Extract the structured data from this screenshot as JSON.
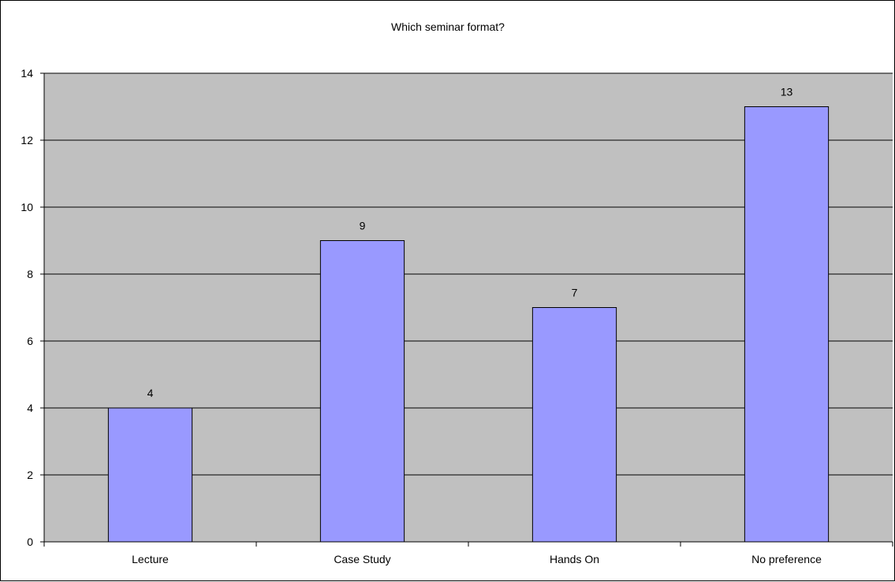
{
  "chart_data": {
    "type": "bar",
    "title": "Which seminar format?",
    "categories": [
      "Lecture",
      "Case Study",
      "Hands On",
      "No preference"
    ],
    "series": [
      {
        "values": [
          4,
          9,
          7,
          13
        ]
      }
    ],
    "ylim": [
      0,
      14
    ],
    "yticks": [
      0,
      2,
      4,
      6,
      8,
      10,
      12,
      14
    ],
    "grid": true,
    "legend": "none",
    "data_labels": true,
    "colors": {
      "bar_fill": "#9999ff",
      "bar_stroke": "#000000",
      "plot_background": "#c0c0c0",
      "gridline": "#000000",
      "text": "#000000"
    }
  }
}
